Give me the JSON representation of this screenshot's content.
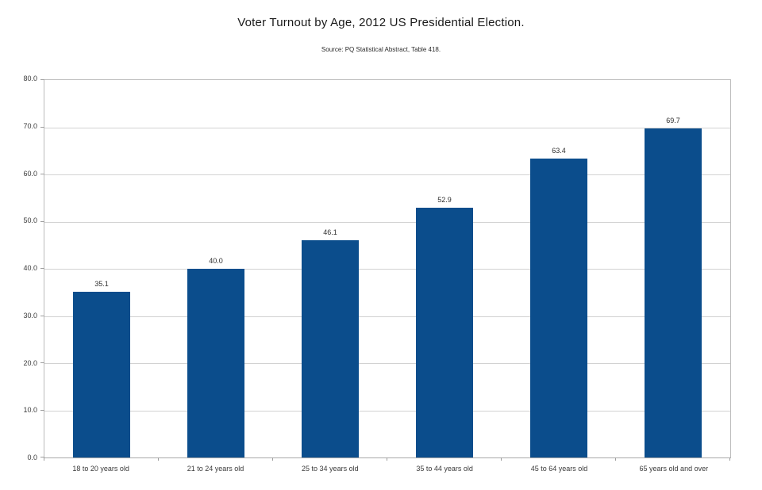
{
  "chart_data": {
    "type": "bar",
    "title": "Voter Turnout by Age, 2012 US Presidential Election.",
    "subtitle": "Source: PQ Statistical Abstract, Table 418.",
    "categories": [
      "18 to 20 years old",
      "21 to 24 years old",
      "25 to 34 years old",
      "35 to 44 years old",
      "45 to 64 years old",
      "65 years old and over"
    ],
    "values": [
      35.1,
      40.0,
      46.1,
      52.9,
      63.4,
      69.7
    ],
    "value_labels": [
      "35.1",
      "40.0",
      "46.1",
      "52.9",
      "63.4",
      "69.7"
    ],
    "xlabel": "",
    "ylabel": "",
    "ylim": [
      0,
      80
    ],
    "ytick_step": 10,
    "ytick_labels": [
      "0.0",
      "10.0",
      "20.0",
      "30.0",
      "40.0",
      "50.0",
      "60.0",
      "70.0",
      "80.0"
    ],
    "grid": true,
    "legend": "none",
    "colors": {
      "bar": "#0b4d8c",
      "gridline": "#d2d2d2",
      "axis": "#a8a8a8",
      "text": "#3a3a3a"
    }
  }
}
